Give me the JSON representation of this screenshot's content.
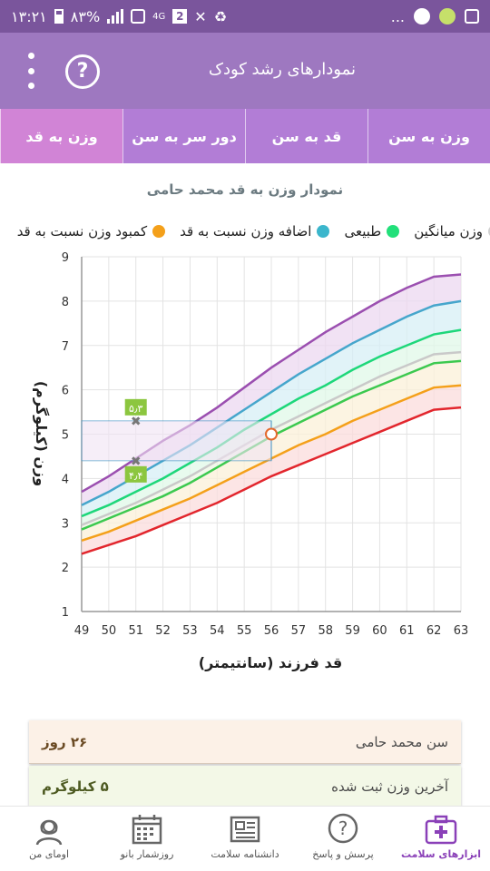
{
  "status": {
    "time": "۱۳:۲۱",
    "battery": "۸۳%",
    "network": "4G",
    "sim_badge": "2",
    "dots": "..."
  },
  "app": {
    "title": "نمودارهای رشد کودک",
    "help_label": "?"
  },
  "tabs": [
    {
      "label": "وزن به سن"
    },
    {
      "label": "قد به سن"
    },
    {
      "label": "دور سر به سن"
    },
    {
      "label": "وزن به قد",
      "active": true
    }
  ],
  "chart_header": {
    "title": "نمودار وزن به قد محمد حامی"
  },
  "legend": [
    {
      "label": "وزن میانگین",
      "color": "#d0d0d0"
    },
    {
      "label": "طبیعی",
      "color": "#22e07a"
    },
    {
      "label": "اضافه وزن نسبت به قد",
      "color": "#3bb6cc"
    },
    {
      "label": "کمبود وزن نسبت به قد",
      "color": "#f4a01a"
    }
  ],
  "chart_data": {
    "type": "line",
    "ylabel": "وزن (کیلوگرم)",
    "xlabel": "قد فرزند (سانتیمتر)",
    "xlim": [
      49,
      63
    ],
    "ylim": [
      1,
      9
    ],
    "x_ticks": [
      "49",
      "50",
      "51",
      "52",
      "53",
      "54",
      "55",
      "56",
      "57",
      "58",
      "59",
      "60",
      "61",
      "62",
      "63"
    ],
    "y_ticks": [
      "1",
      "2",
      "3",
      "4",
      "5",
      "6",
      "7",
      "8",
      "9"
    ],
    "x": [
      49,
      50,
      51,
      52,
      53,
      54,
      55,
      56,
      57,
      58,
      59,
      60,
      61,
      62,
      63
    ],
    "series": [
      {
        "color": "#9b4fb0",
        "values": [
          3.7,
          4.05,
          4.45,
          4.85,
          5.2,
          5.6,
          6.05,
          6.5,
          6.9,
          7.3,
          7.65,
          8.0,
          8.3,
          8.55,
          8.6
        ]
      },
      {
        "color": "#46a6cc",
        "values": [
          3.4,
          3.7,
          4.05,
          4.4,
          4.75,
          5.15,
          5.55,
          5.95,
          6.35,
          6.7,
          7.05,
          7.35,
          7.65,
          7.9,
          8.0
        ]
      },
      {
        "color": "#1ed77a",
        "values": [
          3.15,
          3.4,
          3.7,
          4.0,
          4.35,
          4.7,
          5.1,
          5.45,
          5.8,
          6.1,
          6.45,
          6.75,
          7.0,
          7.25,
          7.35
        ]
      },
      {
        "color": "#c9c9c9",
        "values": [
          2.95,
          3.2,
          3.45,
          3.75,
          4.05,
          4.4,
          4.75,
          5.1,
          5.4,
          5.7,
          6.0,
          6.3,
          6.55,
          6.8,
          6.85
        ]
      },
      {
        "color": "#3cc94f",
        "values": [
          2.85,
          3.1,
          3.35,
          3.6,
          3.9,
          4.25,
          4.6,
          4.95,
          5.25,
          5.55,
          5.85,
          6.1,
          6.35,
          6.6,
          6.65
        ]
      },
      {
        "color": "#f4a01a",
        "values": [
          2.6,
          2.8,
          3.05,
          3.3,
          3.55,
          3.85,
          4.15,
          4.45,
          4.75,
          5.0,
          5.3,
          5.55,
          5.8,
          6.05,
          6.1
        ]
      },
      {
        "color": "#e2262d",
        "values": [
          2.3,
          2.5,
          2.7,
          2.95,
          3.2,
          3.45,
          3.75,
          4.05,
          4.3,
          4.55,
          4.8,
          5.05,
          5.3,
          5.55,
          5.6
        ]
      }
    ],
    "marker_upper": {
      "x": 51,
      "y": 5.3,
      "label": "۵٫۳"
    },
    "marker_lower": {
      "x": 51,
      "y": 4.4,
      "label": "۴٫۴"
    },
    "measurement": {
      "x": 56,
      "y": 5.0
    },
    "grid": true
  },
  "info": {
    "age_label": "سن محمد حامی",
    "age_value": "۲۶ روز",
    "weight_label": "آخرین وزن ثبت شده",
    "weight_value": "۵ کیلوگرم"
  },
  "bottom_nav": [
    {
      "label": "ابزارهای سلامت",
      "icon": "first-aid-kit-icon",
      "active": true
    },
    {
      "label": "پرسش و پاسخ",
      "icon": "question-bubble-icon"
    },
    {
      "label": "دانشنامه سلامت",
      "icon": "newspaper-icon"
    },
    {
      "label": "روزشمار بانو",
      "icon": "calendar-icon"
    },
    {
      "label": "اومای من",
      "icon": "woman-avatar-icon"
    }
  ]
}
